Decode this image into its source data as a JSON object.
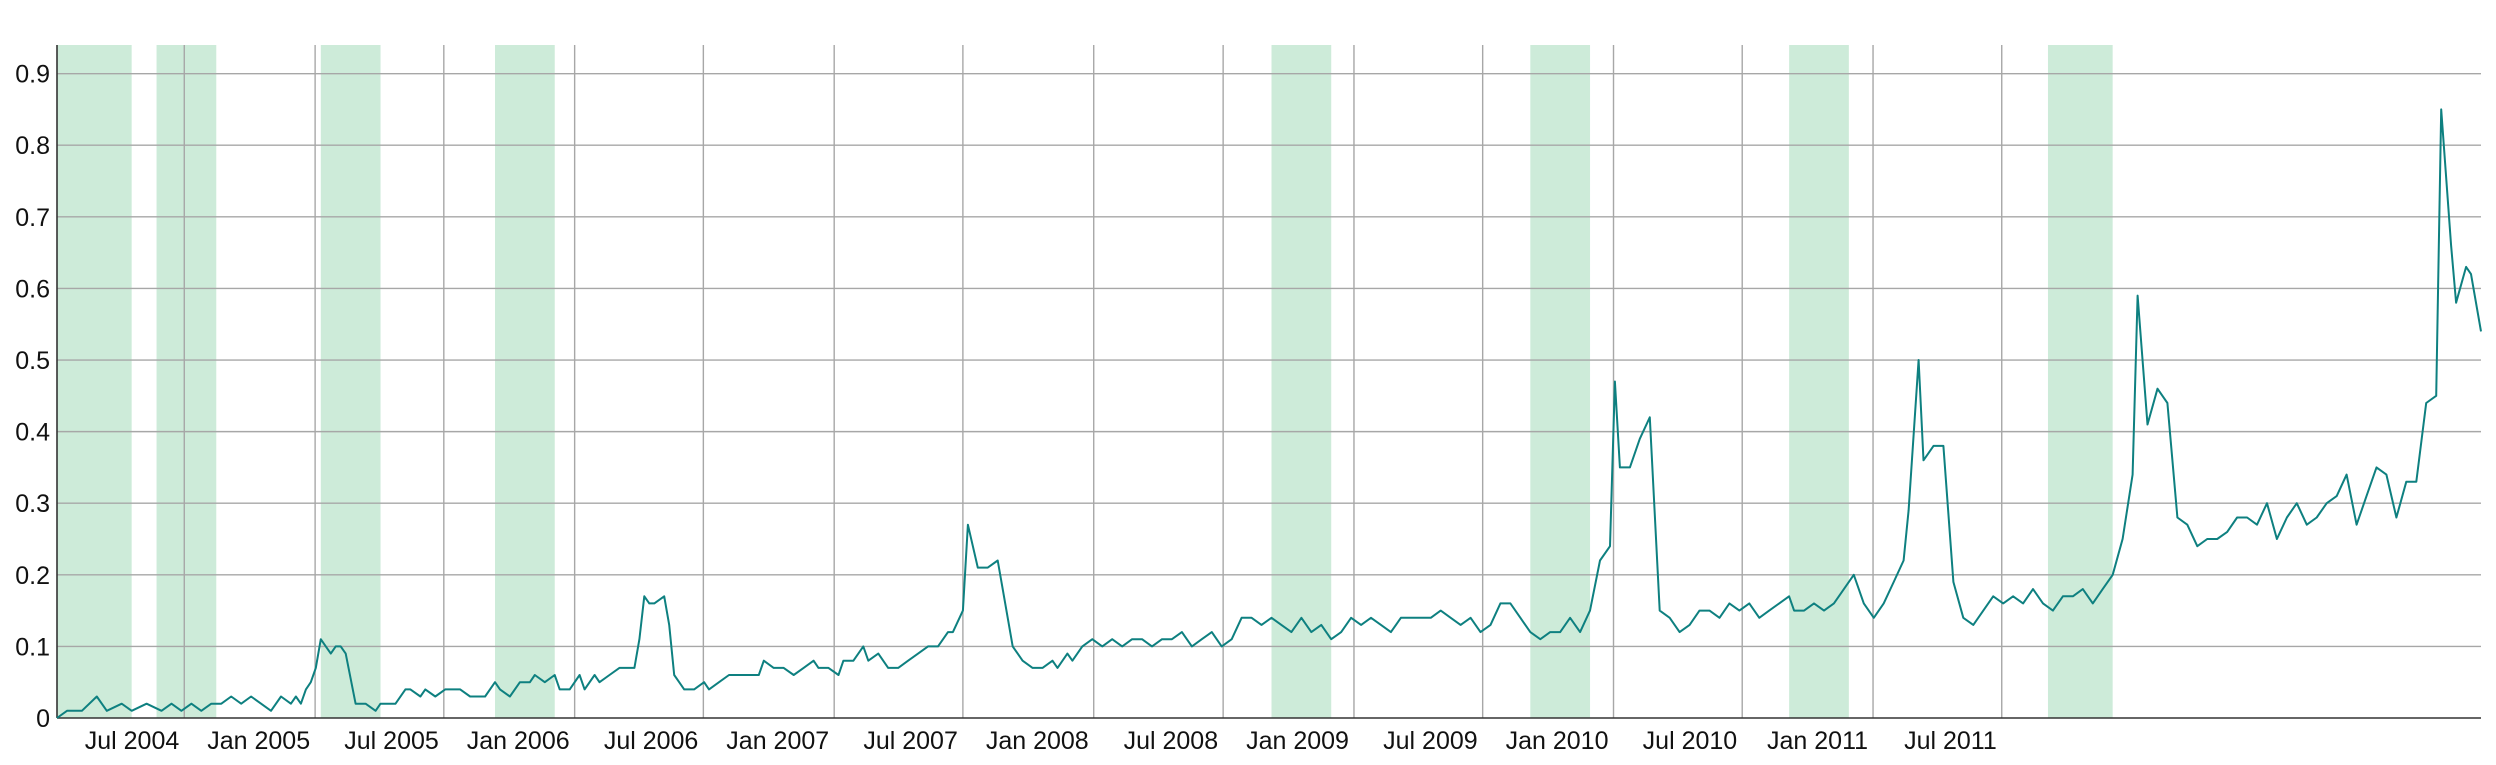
{
  "chart_data": {
    "type": "line",
    "title": "",
    "xlabel": "",
    "ylabel": "",
    "ylim": [
      0,
      0.94
    ],
    "grid": true,
    "x_ticks": [
      "Jul 2004",
      "Jan 2005",
      "Jul 2005",
      "Jan 2006",
      "Jul 2006",
      "Jan 2007",
      "Jul 2007",
      "Jan 2008",
      "Jul 2008",
      "Jan 2009",
      "Jul 2009",
      "Jan 2010",
      "Jul 2010",
      "Jan 2011",
      "Jul 2011"
    ],
    "y_ticks": [
      "0",
      "0.1",
      "0.2",
      "0.3",
      "0.4",
      "0.5",
      "0.6",
      "0.7",
      "0.8",
      "0.9"
    ],
    "shaded_periods": [
      [
        "2004-01-04",
        "2004-04-18"
      ],
      [
        "2004-05-23",
        "2004-08-15"
      ],
      [
        "2005-01-09",
        "2005-04-03"
      ],
      [
        "2005-09-11",
        "2005-12-04"
      ],
      [
        "2008-09-07",
        "2008-11-30"
      ],
      [
        "2009-09-06",
        "2009-11-29"
      ],
      [
        "2010-09-05",
        "2010-11-28"
      ],
      [
        "2011-09-04",
        "2011-12-04"
      ]
    ],
    "series": [
      {
        "color": "#0e8080",
        "points": [
          [
            "2004-01-04",
            0.0
          ],
          [
            "2004-01-18",
            0.01
          ],
          [
            "2004-02-08",
            0.01
          ],
          [
            "2004-02-29",
            0.03
          ],
          [
            "2004-03-14",
            0.01
          ],
          [
            "2004-04-04",
            0.02
          ],
          [
            "2004-04-18",
            0.01
          ],
          [
            "2004-05-09",
            0.02
          ],
          [
            "2004-05-30",
            0.01
          ],
          [
            "2004-06-13",
            0.02
          ],
          [
            "2004-06-27",
            0.01
          ],
          [
            "2004-07-11",
            0.02
          ],
          [
            "2004-07-25",
            0.01
          ],
          [
            "2004-08-08",
            0.02
          ],
          [
            "2004-08-22",
            0.02
          ],
          [
            "2004-09-05",
            0.03
          ],
          [
            "2004-09-19",
            0.02
          ],
          [
            "2004-10-03",
            0.03
          ],
          [
            "2004-10-17",
            0.02
          ],
          [
            "2004-10-31",
            0.01
          ],
          [
            "2004-11-14",
            0.03
          ],
          [
            "2004-11-28",
            0.02
          ],
          [
            "2004-12-05",
            0.03
          ],
          [
            "2004-12-12",
            0.02
          ],
          [
            "2004-12-19",
            0.04
          ],
          [
            "2004-12-26",
            0.05
          ],
          [
            "2005-01-02",
            0.07
          ],
          [
            "2005-01-09",
            0.11
          ],
          [
            "2005-01-16",
            0.1
          ],
          [
            "2005-01-23",
            0.09
          ],
          [
            "2005-01-30",
            0.1
          ],
          [
            "2005-02-06",
            0.1
          ],
          [
            "2005-02-13",
            0.09
          ],
          [
            "2005-02-27",
            0.02
          ],
          [
            "2005-03-13",
            0.02
          ],
          [
            "2005-03-27",
            0.01
          ],
          [
            "2005-04-03",
            0.02
          ],
          [
            "2005-04-24",
            0.02
          ],
          [
            "2005-05-08",
            0.04
          ],
          [
            "2005-05-15",
            0.04
          ],
          [
            "2005-05-29",
            0.03
          ],
          [
            "2005-06-05",
            0.04
          ],
          [
            "2005-06-19",
            0.03
          ],
          [
            "2005-07-03",
            0.04
          ],
          [
            "2005-07-24",
            0.04
          ],
          [
            "2005-08-07",
            0.03
          ],
          [
            "2005-08-28",
            0.03
          ],
          [
            "2005-09-11",
            0.05
          ],
          [
            "2005-09-18",
            0.04
          ],
          [
            "2005-10-02",
            0.03
          ],
          [
            "2005-10-16",
            0.05
          ],
          [
            "2005-10-30",
            0.05
          ],
          [
            "2005-11-06",
            0.06
          ],
          [
            "2005-11-20",
            0.05
          ],
          [
            "2005-12-04",
            0.06
          ],
          [
            "2005-12-11",
            0.04
          ],
          [
            "2005-12-25",
            0.04
          ],
          [
            "2006-01-08",
            0.06
          ],
          [
            "2006-01-15",
            0.04
          ],
          [
            "2006-01-29",
            0.06
          ],
          [
            "2006-02-05",
            0.05
          ],
          [
            "2006-02-19",
            0.06
          ],
          [
            "2006-03-05",
            0.07
          ],
          [
            "2006-03-12",
            0.07
          ],
          [
            "2006-03-26",
            0.07
          ],
          [
            "2006-04-02",
            0.11
          ],
          [
            "2006-04-09",
            0.17
          ],
          [
            "2006-04-16",
            0.16
          ],
          [
            "2006-04-23",
            0.16
          ],
          [
            "2006-05-07",
            0.17
          ],
          [
            "2006-05-14",
            0.13
          ],
          [
            "2006-05-21",
            0.06
          ],
          [
            "2006-05-28",
            0.05
          ],
          [
            "2006-06-04",
            0.04
          ],
          [
            "2006-06-18",
            0.04
          ],
          [
            "2006-07-02",
            0.05
          ],
          [
            "2006-07-09",
            0.04
          ],
          [
            "2006-07-23",
            0.05
          ],
          [
            "2006-08-06",
            0.06
          ],
          [
            "2006-08-20",
            0.06
          ],
          [
            "2006-09-03",
            0.06
          ],
          [
            "2006-09-17",
            0.06
          ],
          [
            "2006-09-24",
            0.08
          ],
          [
            "2006-10-08",
            0.07
          ],
          [
            "2006-10-22",
            0.07
          ],
          [
            "2006-11-05",
            0.06
          ],
          [
            "2006-11-19",
            0.07
          ],
          [
            "2006-12-03",
            0.08
          ],
          [
            "2006-12-10",
            0.07
          ],
          [
            "2006-12-24",
            0.07
          ],
          [
            "2007-01-07",
            0.06
          ],
          [
            "2007-01-14",
            0.08
          ],
          [
            "2007-01-28",
            0.08
          ],
          [
            "2007-02-11",
            0.1
          ],
          [
            "2007-02-18",
            0.08
          ],
          [
            "2007-03-04",
            0.09
          ],
          [
            "2007-03-18",
            0.07
          ],
          [
            "2007-04-01",
            0.07
          ],
          [
            "2007-04-15",
            0.08
          ],
          [
            "2007-04-29",
            0.09
          ],
          [
            "2007-05-13",
            0.1
          ],
          [
            "2007-05-27",
            0.1
          ],
          [
            "2007-06-10",
            0.12
          ],
          [
            "2007-06-17",
            0.12
          ],
          [
            "2007-07-01",
            0.15
          ],
          [
            "2007-07-08",
            0.27
          ],
          [
            "2007-07-22",
            0.21
          ],
          [
            "2007-08-05",
            0.21
          ],
          [
            "2007-08-19",
            0.22
          ],
          [
            "2007-08-26",
            0.18
          ],
          [
            "2007-09-09",
            0.1
          ],
          [
            "2007-09-23",
            0.08
          ],
          [
            "2007-10-07",
            0.07
          ],
          [
            "2007-10-21",
            0.07
          ],
          [
            "2007-11-04",
            0.08
          ],
          [
            "2007-11-11",
            0.07
          ],
          [
            "2007-11-25",
            0.09
          ],
          [
            "2007-12-02",
            0.08
          ],
          [
            "2007-12-16",
            0.1
          ],
          [
            "2007-12-30",
            0.11
          ],
          [
            "2008-01-13",
            0.1
          ],
          [
            "2008-01-27",
            0.11
          ],
          [
            "2008-02-10",
            0.1
          ],
          [
            "2008-02-24",
            0.11
          ],
          [
            "2008-03-09",
            0.11
          ],
          [
            "2008-03-23",
            0.1
          ],
          [
            "2008-04-06",
            0.11
          ],
          [
            "2008-04-20",
            0.11
          ],
          [
            "2008-05-04",
            0.12
          ],
          [
            "2008-05-18",
            0.1
          ],
          [
            "2008-06-01",
            0.11
          ],
          [
            "2008-06-15",
            0.12
          ],
          [
            "2008-06-29",
            0.1
          ],
          [
            "2008-07-13",
            0.11
          ],
          [
            "2008-07-27",
            0.14
          ],
          [
            "2008-08-10",
            0.14
          ],
          [
            "2008-08-24",
            0.13
          ],
          [
            "2008-09-07",
            0.14
          ],
          [
            "2008-09-21",
            0.13
          ],
          [
            "2008-10-05",
            0.12
          ],
          [
            "2008-10-19",
            0.14
          ],
          [
            "2008-11-02",
            0.12
          ],
          [
            "2008-11-16",
            0.13
          ],
          [
            "2008-11-30",
            0.11
          ],
          [
            "2008-12-14",
            0.12
          ],
          [
            "2008-12-28",
            0.14
          ],
          [
            "2009-01-11",
            0.13
          ],
          [
            "2009-01-25",
            0.14
          ],
          [
            "2009-02-08",
            0.13
          ],
          [
            "2009-02-22",
            0.12
          ],
          [
            "2009-03-08",
            0.14
          ],
          [
            "2009-03-22",
            0.14
          ],
          [
            "2009-04-05",
            0.14
          ],
          [
            "2009-04-19",
            0.14
          ],
          [
            "2009-05-03",
            0.15
          ],
          [
            "2009-05-17",
            0.14
          ],
          [
            "2009-05-31",
            0.13
          ],
          [
            "2009-06-14",
            0.14
          ],
          [
            "2009-06-28",
            0.12
          ],
          [
            "2009-07-12",
            0.13
          ],
          [
            "2009-07-26",
            0.16
          ],
          [
            "2009-08-09",
            0.16
          ],
          [
            "2009-08-23",
            0.14
          ],
          [
            "2009-09-06",
            0.12
          ],
          [
            "2009-09-20",
            0.11
          ],
          [
            "2009-10-04",
            0.12
          ],
          [
            "2009-10-18",
            0.12
          ],
          [
            "2009-11-01",
            0.14
          ],
          [
            "2009-11-15",
            0.12
          ],
          [
            "2009-11-29",
            0.15
          ],
          [
            "2009-12-13",
            0.22
          ],
          [
            "2009-12-27",
            0.24
          ],
          [
            "2010-01-03",
            0.47
          ],
          [
            "2010-01-10",
            0.35
          ],
          [
            "2010-01-24",
            0.35
          ],
          [
            "2010-02-07",
            0.39
          ],
          [
            "2010-02-21",
            0.42
          ],
          [
            "2010-03-07",
            0.15
          ],
          [
            "2010-03-21",
            0.14
          ],
          [
            "2010-04-04",
            0.12
          ],
          [
            "2010-04-18",
            0.13
          ],
          [
            "2010-05-02",
            0.15
          ],
          [
            "2010-05-16",
            0.15
          ],
          [
            "2010-05-30",
            0.14
          ],
          [
            "2010-06-13",
            0.16
          ],
          [
            "2010-06-27",
            0.15
          ],
          [
            "2010-07-11",
            0.16
          ],
          [
            "2010-07-25",
            0.14
          ],
          [
            "2010-08-08",
            0.15
          ],
          [
            "2010-08-22",
            0.16
          ],
          [
            "2010-09-05",
            0.17
          ],
          [
            "2010-09-12",
            0.15
          ],
          [
            "2010-09-26",
            0.15
          ],
          [
            "2010-10-10",
            0.16
          ],
          [
            "2010-10-24",
            0.15
          ],
          [
            "2010-11-07",
            0.16
          ],
          [
            "2010-11-21",
            0.18
          ],
          [
            "2010-12-05",
            0.2
          ],
          [
            "2010-12-19",
            0.16
          ],
          [
            "2011-01-02",
            0.14
          ],
          [
            "2011-01-16",
            0.16
          ],
          [
            "2011-01-30",
            0.19
          ],
          [
            "2011-02-13",
            0.22
          ],
          [
            "2011-02-20",
            0.29
          ],
          [
            "2011-03-06",
            0.5
          ],
          [
            "2011-03-13",
            0.36
          ],
          [
            "2011-03-27",
            0.38
          ],
          [
            "2011-04-10",
            0.38
          ],
          [
            "2011-04-24",
            0.19
          ],
          [
            "2011-05-08",
            0.14
          ],
          [
            "2011-05-22",
            0.13
          ],
          [
            "2011-06-05",
            0.15
          ],
          [
            "2011-06-19",
            0.17
          ],
          [
            "2011-07-03",
            0.16
          ],
          [
            "2011-07-17",
            0.17
          ],
          [
            "2011-07-31",
            0.16
          ],
          [
            "2011-08-14",
            0.18
          ],
          [
            "2011-08-28",
            0.16
          ],
          [
            "2011-09-11",
            0.15
          ],
          [
            "2011-09-25",
            0.17
          ],
          [
            "2011-10-09",
            0.17
          ],
          [
            "2011-10-23",
            0.18
          ],
          [
            "2011-11-06",
            0.16
          ],
          [
            "2011-11-20",
            0.18
          ],
          [
            "2011-12-04",
            0.2
          ],
          [
            "2011-12-18",
            0.25
          ],
          [
            "2012-01-01",
            0.34
          ],
          [
            "2012-01-08",
            0.59
          ],
          [
            "2012-01-22",
            0.41
          ],
          [
            "2012-02-05",
            0.46
          ],
          [
            "2012-02-19",
            0.44
          ],
          [
            "2012-03-04",
            0.28
          ],
          [
            "2012-03-18",
            0.27
          ],
          [
            "2012-04-01",
            0.24
          ],
          [
            "2012-04-15",
            0.25
          ],
          [
            "2012-04-29",
            0.25
          ],
          [
            "2012-05-13",
            0.26
          ],
          [
            "2012-05-27",
            0.28
          ],
          [
            "2012-06-10",
            0.28
          ],
          [
            "2012-06-24",
            0.27
          ],
          [
            "2012-07-08",
            0.3
          ],
          [
            "2012-07-22",
            0.25
          ],
          [
            "2012-08-05",
            0.28
          ],
          [
            "2012-08-19",
            0.3
          ],
          [
            "2012-09-02",
            0.27
          ],
          [
            "2012-09-16",
            0.28
          ],
          [
            "2012-09-30",
            0.3
          ],
          [
            "2012-10-14",
            0.31
          ],
          [
            "2012-10-28",
            0.34
          ],
          [
            "2012-11-11",
            0.27
          ],
          [
            "2012-11-25",
            0.31
          ],
          [
            "2012-12-09",
            0.35
          ],
          [
            "2012-12-23",
            0.34
          ],
          [
            "2013-01-06",
            0.28
          ],
          [
            "2013-01-20",
            0.33
          ],
          [
            "2013-02-03",
            0.33
          ],
          [
            "2013-02-17",
            0.44
          ],
          [
            "2013-03-03",
            0.45
          ],
          [
            "2013-03-10",
            0.85
          ],
          [
            "2013-03-24",
            0.66
          ],
          [
            "2013-03-31",
            0.58
          ],
          [
            "2013-04-14",
            0.63
          ],
          [
            "2013-04-21",
            0.62
          ],
          [
            "2013-05-05",
            0.54
          ]
        ]
      }
    ]
  }
}
